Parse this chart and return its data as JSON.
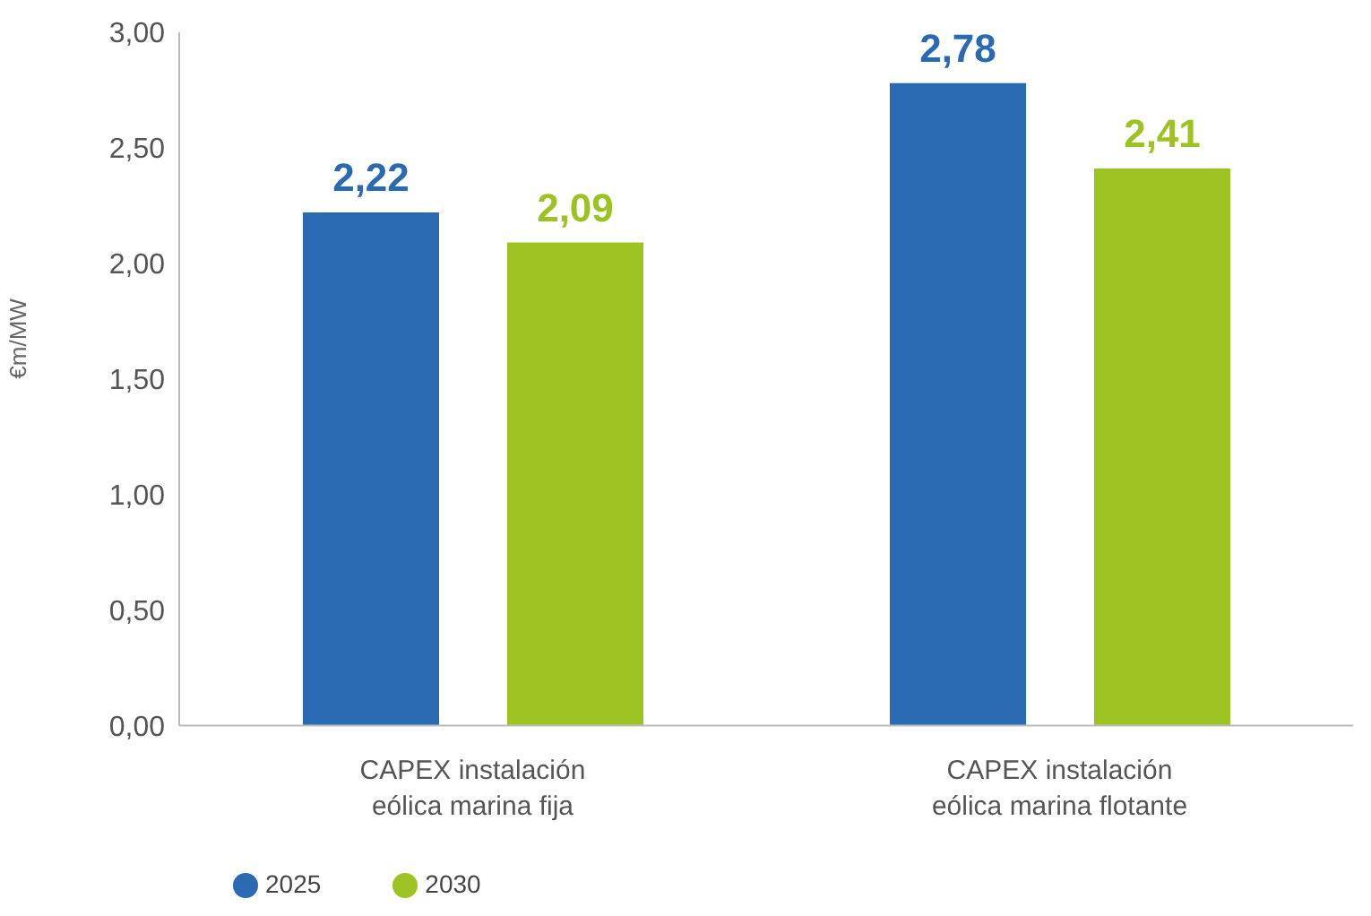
{
  "chart_data": {
    "type": "bar",
    "ylabel": "€m/MW",
    "categories": [
      "CAPEX instalación eólica marina fija",
      "CAPEX instalación eólica marina flotante"
    ],
    "series": [
      {
        "name": "2025",
        "color": "#2a6ab3",
        "values": [
          2.22,
          2.78
        ],
        "value_labels": [
          "2,22",
          "2,78"
        ]
      },
      {
        "name": "2030",
        "color": "#9dc322",
        "values": [
          2.09,
          2.41
        ],
        "value_labels": [
          "2,09",
          "2,41"
        ]
      }
    ],
    "ylim": [
      0,
      3
    ],
    "yticks": [
      {
        "value": 0,
        "label": "0,00"
      },
      {
        "value": 0.5,
        "label": "0,50"
      },
      {
        "value": 1,
        "label": "1,00"
      },
      {
        "value": 1.5,
        "label": "1,50"
      },
      {
        "value": 2,
        "label": "2,00"
      },
      {
        "value": 2.5,
        "label": "2,50"
      },
      {
        "value": 3,
        "label": "3,00"
      }
    ],
    "grid": false,
    "legend": "bottom left"
  }
}
